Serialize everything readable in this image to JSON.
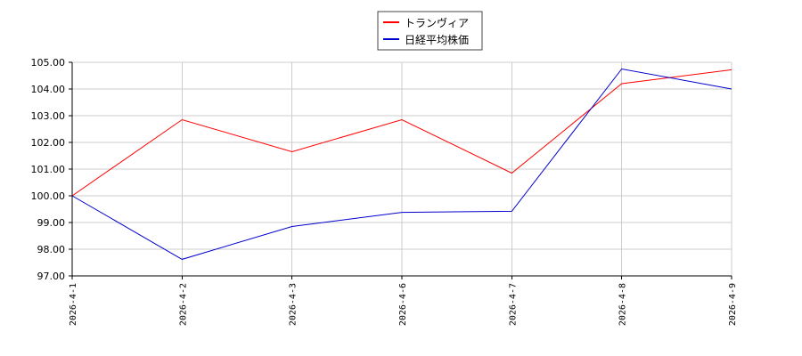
{
  "chart_data": {
    "type": "line",
    "categories": [
      "2026-4-1",
      "2026-4-2",
      "2026-4-3",
      "2026-4-6",
      "2026-4-7",
      "2026-4-8",
      "2026-4-9"
    ],
    "series": [
      {
        "name": "トランヴィア",
        "color": "#ff0000",
        "values": [
          100.0,
          102.85,
          101.65,
          102.85,
          100.85,
          104.2,
          104.72
        ]
      },
      {
        "name": "日経平均株価",
        "color": "#0000cc",
        "values": [
          100.0,
          97.62,
          98.85,
          99.38,
          99.42,
          104.75,
          104.0
        ]
      }
    ],
    "y_ticks": [
      "97.00",
      "98.00",
      "99.00",
      "100.00",
      "101.00",
      "102.00",
      "103.00",
      "104.00",
      "105.00"
    ],
    "ylim": [
      97,
      105
    ],
    "grid": true,
    "legend_position": "top-center",
    "title": "",
    "xlabel": "",
    "ylabel": ""
  }
}
